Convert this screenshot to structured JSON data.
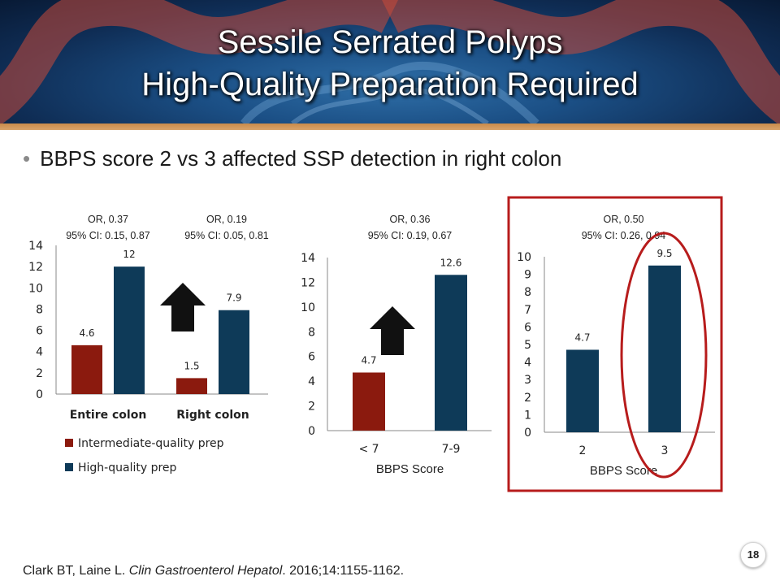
{
  "slide": {
    "title_line1": "Sessile Serrated Polyps",
    "title_line2": "High-Quality Preparation Required",
    "bullet": "BBPS score 2 vs 3 affected SSP detection in right colon",
    "page_number": "18",
    "citation": {
      "authors": "Clark BT, Laine L. ",
      "journal": "Clin Gastroenterol Hepatol",
      "rest": ". 2016;14:1155-1162."
    }
  },
  "colors": {
    "intermediate": "#8b1a0e",
    "high": "#0e3a58",
    "highlight": "#b71c1c",
    "arrow": "#111111"
  },
  "chart_data": [
    {
      "type": "bar",
      "categories": [
        "Entire colon",
        "Right colon"
      ],
      "series": [
        {
          "name": "Intermediate-quality prep",
          "values": [
            4.6,
            1.5
          ],
          "color": "#8b1a0e"
        },
        {
          "name": "High-quality prep",
          "values": [
            12,
            7.9
          ],
          "color": "#0e3a58"
        }
      ],
      "data_labels": [
        [
          "4.6",
          "1.5"
        ],
        [
          "12",
          "7.9"
        ]
      ],
      "ylim": [
        0,
        14
      ],
      "yticks": [
        "0",
        "2",
        "4",
        "6",
        "8",
        "10",
        "12",
        "14"
      ],
      "annotations": [
        {
          "or": "OR, 0.37",
          "ci": "95% CI: 0.15, 0.87"
        },
        {
          "or": "OR, 0.19",
          "ci": "95% CI: 0.05, 0.81"
        }
      ],
      "legend": [
        "Intermediate-quality prep",
        "High-quality prep"
      ],
      "legend_position": "bottom",
      "xlabel": "",
      "grid": false
    },
    {
      "type": "bar",
      "categories": [
        "< 7",
        "7-9"
      ],
      "values": [
        4.7,
        12.6
      ],
      "data_labels": [
        "4.7",
        "12.6"
      ],
      "bar_colors": [
        "#8b1a0e",
        "#0e3a58"
      ],
      "ylim": [
        0,
        14
      ],
      "yticks": [
        "0",
        "2",
        "4",
        "6",
        "8",
        "10",
        "12",
        "14"
      ],
      "annotation": {
        "or": "OR, 0.36",
        "ci": "95% CI: 0.19, 0.67"
      },
      "xlabel": "BBPS Score",
      "grid": false
    },
    {
      "type": "bar",
      "categories": [
        "2",
        "3"
      ],
      "values": [
        4.7,
        9.5
      ],
      "data_labels": [
        "4.7",
        "9.5"
      ],
      "bar_colors": [
        "#0e3a58",
        "#0e3a58"
      ],
      "ylim": [
        0,
        10
      ],
      "yticks": [
        "0",
        "1",
        "2",
        "3",
        "4",
        "5",
        "6",
        "7",
        "8",
        "9",
        "10"
      ],
      "annotation": {
        "or": "OR, 0.50",
        "ci": "95% CI: 0.26, 0.94"
      },
      "xlabel": "BBPS Score",
      "grid": false,
      "highlighted": true
    }
  ]
}
